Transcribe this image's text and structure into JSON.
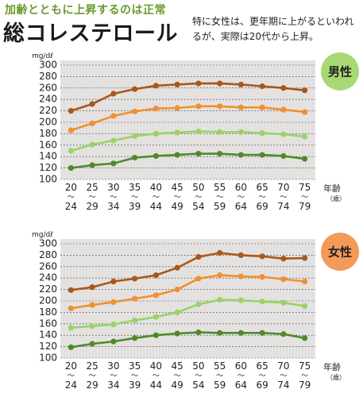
{
  "header": {
    "subtitle": "加齢とともに上昇するのは正常",
    "title": "総コレステロール",
    "note": "特に女性は、更年期に上がるといわれるが、実際は20代から上昇。"
  },
  "colors": {
    "panel": "#e3e2e0",
    "series": [
      "#a9571c",
      "#f0902e",
      "#98d368",
      "#4f8a2a"
    ],
    "badge_male": "#a8d874",
    "badge_female": "#f39a59"
  },
  "chart_data": [
    {
      "type": "line",
      "badge": "男性",
      "unit": "mg/dℓ",
      "xlabel": "年齢",
      "xlabel_unit": "（歳）",
      "categories": [
        "20〜24",
        "25〜29",
        "30〜34",
        "35〜39",
        "40〜44",
        "45〜49",
        "50〜54",
        "55〜59",
        "60〜64",
        "65〜69",
        "70〜74",
        "75〜79"
      ],
      "x_top": [
        "20",
        "25",
        "30",
        "35",
        "40",
        "45",
        "50",
        "55",
        "60",
        "65",
        "70",
        "75"
      ],
      "x_bottom": [
        "24",
        "29",
        "34",
        "39",
        "44",
        "49",
        "54",
        "59",
        "64",
        "69",
        "74",
        "79"
      ],
      "x_sep": "〜",
      "yticks": [
        100,
        120,
        140,
        160,
        180,
        200,
        220,
        240,
        260,
        280,
        300
      ],
      "ylim": [
        100,
        300
      ],
      "grid": true,
      "series": [
        {
          "values": [
            220,
            232,
            250,
            258,
            264,
            266,
            268,
            268,
            266,
            263,
            260,
            256
          ]
        },
        {
          "values": [
            186,
            198,
            211,
            219,
            224,
            225,
            228,
            228,
            226,
            226,
            222,
            218
          ]
        },
        {
          "values": [
            150,
            161,
            168,
            176,
            180,
            182,
            184,
            183,
            183,
            181,
            179,
            175
          ]
        },
        {
          "values": [
            120,
            125,
            128,
            138,
            141,
            143,
            145,
            145,
            143,
            143,
            141,
            136
          ]
        }
      ]
    },
    {
      "type": "line",
      "badge": "女性",
      "unit": "mg/dℓ",
      "xlabel": "年齢",
      "xlabel_unit": "（歳）",
      "categories": [
        "20〜24",
        "25〜29",
        "30〜34",
        "35〜39",
        "40〜44",
        "45〜49",
        "50〜54",
        "55〜59",
        "60〜64",
        "65〜69",
        "70〜74",
        "75〜79"
      ],
      "x_top": [
        "20",
        "25",
        "30",
        "35",
        "40",
        "45",
        "50",
        "55",
        "60",
        "65",
        "70",
        "75"
      ],
      "x_bottom": [
        "24",
        "29",
        "34",
        "39",
        "44",
        "49",
        "54",
        "59",
        "64",
        "69",
        "74",
        "79"
      ],
      "x_sep": "〜",
      "yticks": [
        100,
        120,
        140,
        160,
        180,
        200,
        220,
        240,
        260,
        280,
        300
      ],
      "ylim": [
        100,
        300
      ],
      "grid": true,
      "series": [
        {
          "values": [
            219,
            224,
            234,
            239,
            245,
            258,
            277,
            284,
            280,
            278,
            274,
            275
          ]
        },
        {
          "values": [
            187,
            193,
            198,
            204,
            210,
            220,
            239,
            245,
            243,
            242,
            238,
            234
          ]
        },
        {
          "values": [
            153,
            156,
            159,
            166,
            172,
            180,
            194,
            202,
            201,
            199,
            197,
            191
          ]
        },
        {
          "values": [
            119,
            125,
            129,
            135,
            140,
            143,
            145,
            144,
            144,
            144,
            142,
            135
          ]
        }
      ]
    }
  ]
}
